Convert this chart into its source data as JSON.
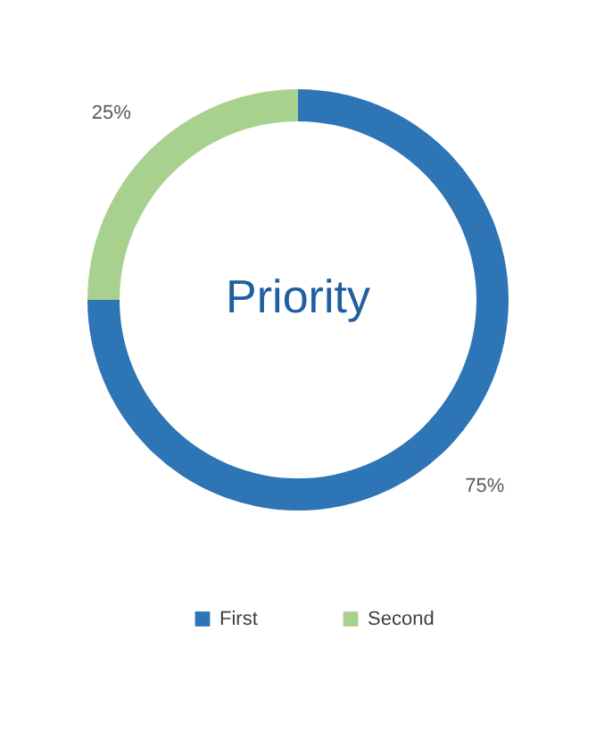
{
  "chart_data": {
    "type": "donut",
    "title": "Priority",
    "categories": [
      "First",
      "Second"
    ],
    "values": [
      75,
      25
    ],
    "colors": [
      "#2e75b6",
      "#a9d18e"
    ],
    "value_labels": [
      "75%",
      "25%"
    ],
    "legend": "bottom"
  }
}
